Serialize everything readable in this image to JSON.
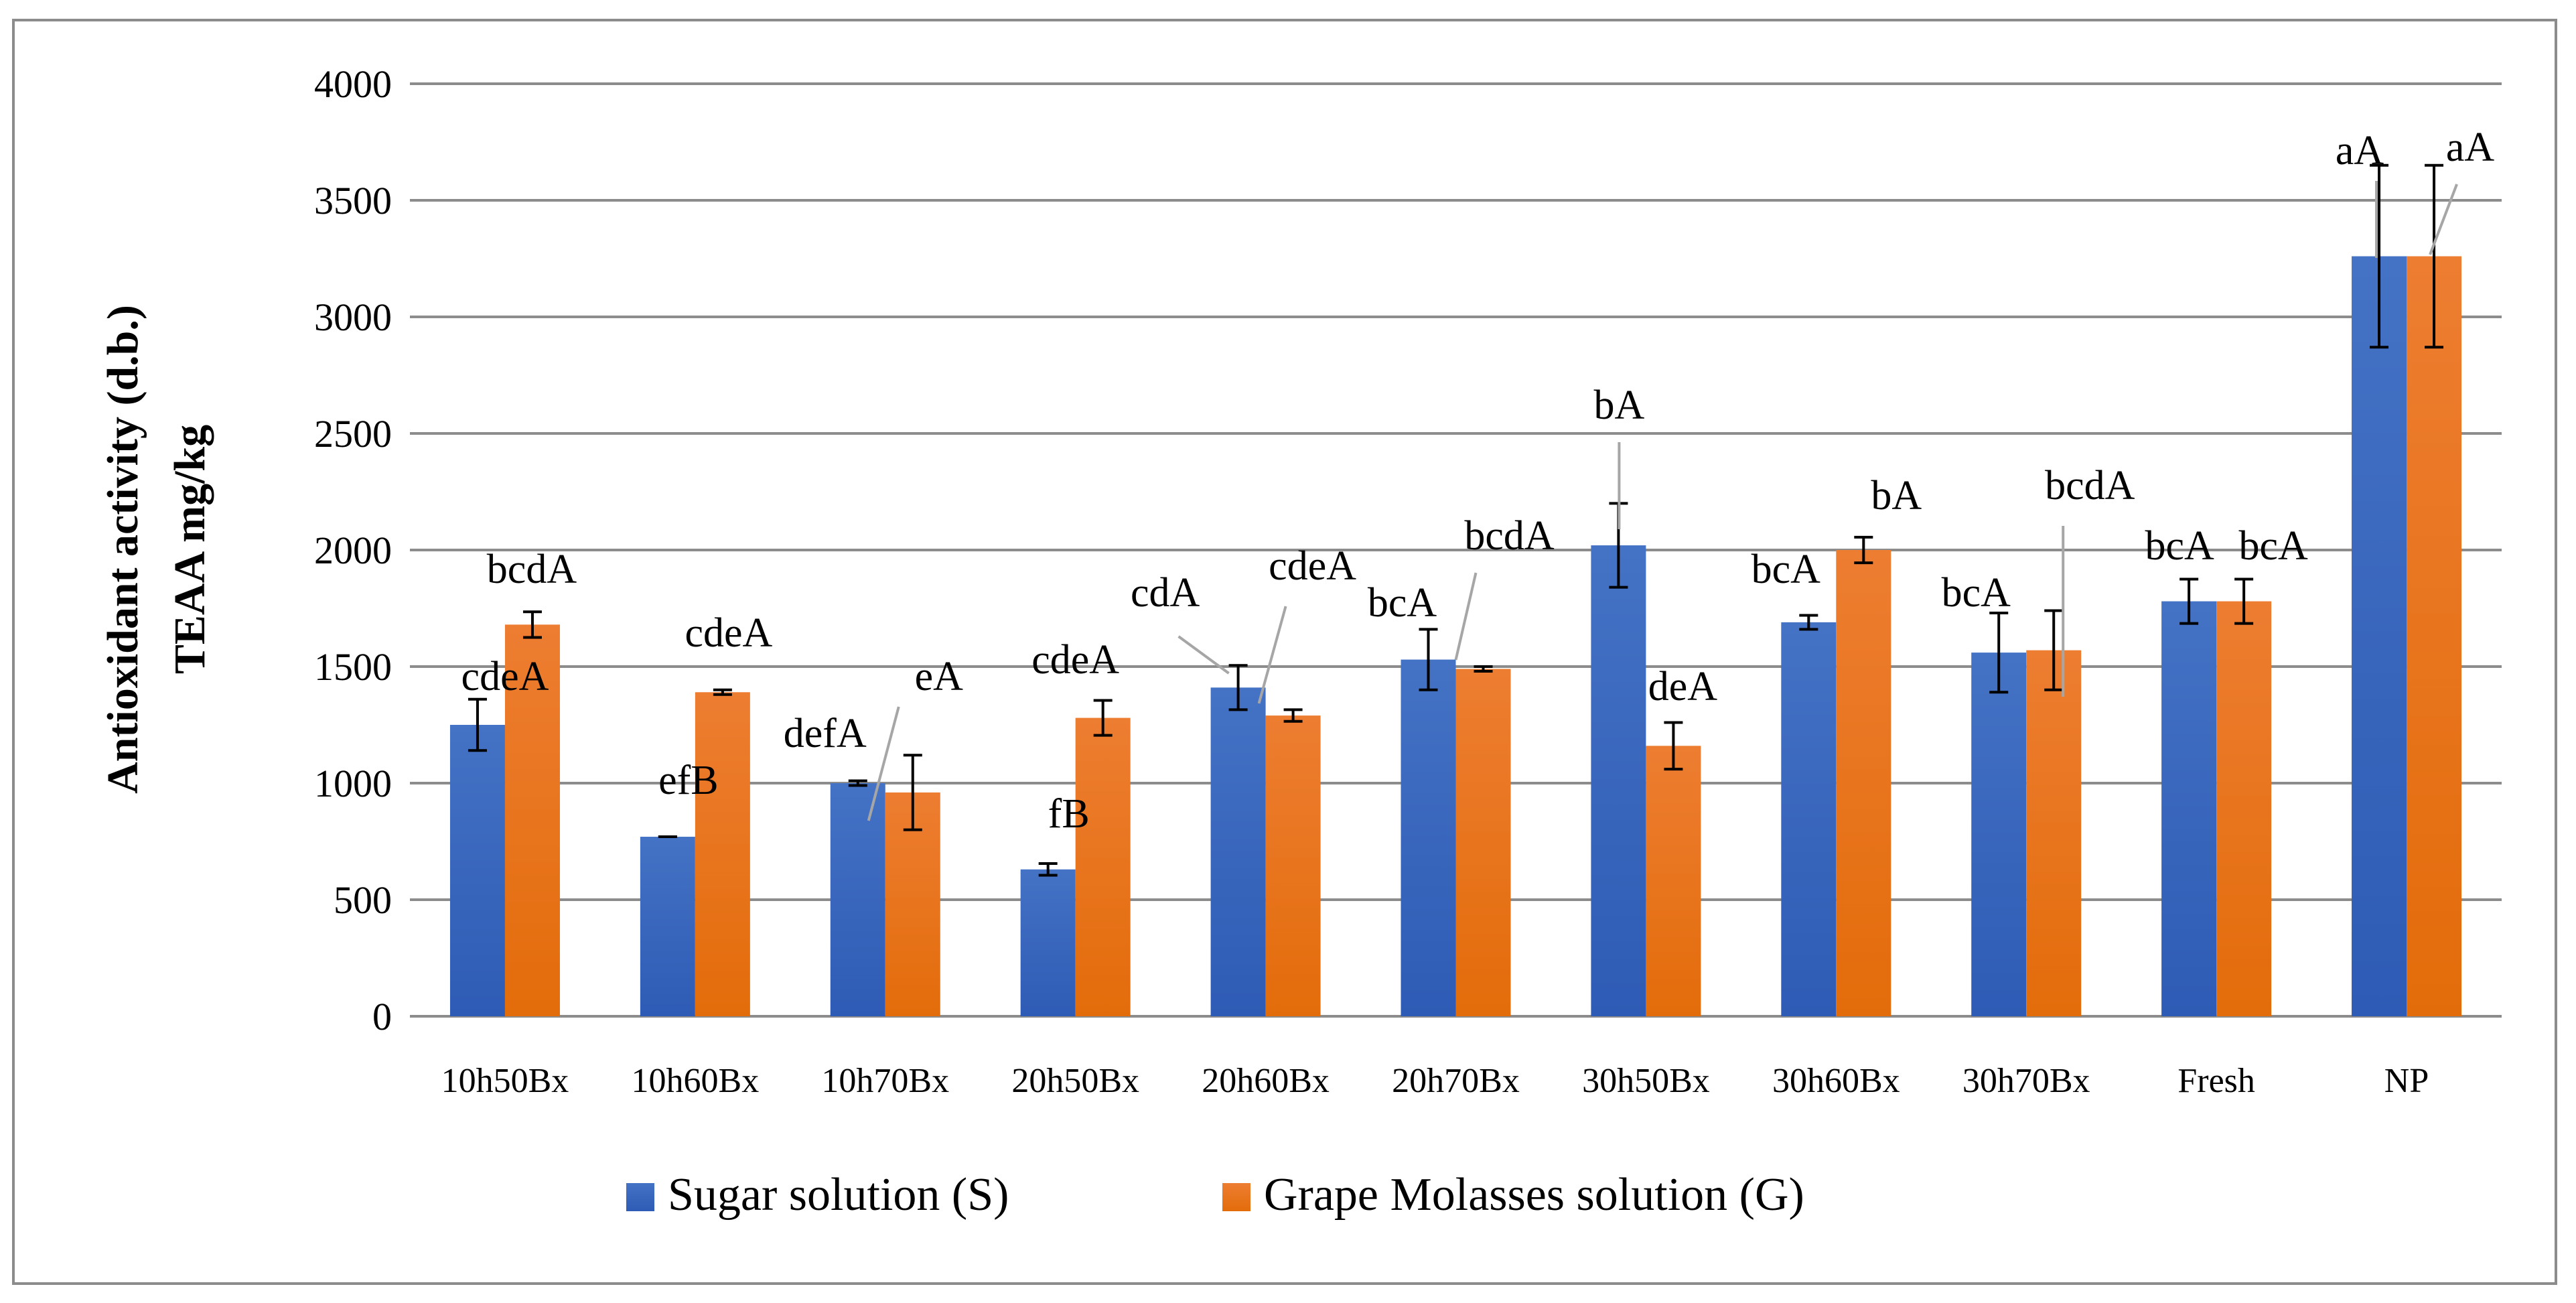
{
  "chart_data": {
    "type": "bar",
    "ylabel_lines": [
      "Antioxidant activity (d.b.)",
      "TEAA mg/kg"
    ],
    "ylim": [
      0,
      4000
    ],
    "yticks": [
      0,
      500,
      1000,
      1500,
      2000,
      2500,
      3000,
      3500,
      4000
    ],
    "grid": true,
    "legend_position": "bottom",
    "categories": [
      "10h50Bx",
      "10h60Bx",
      "10h70Bx",
      "20h50Bx",
      "20h60Bx",
      "20h70Bx",
      "30h50Bx",
      "30h60Bx",
      "30h70Bx",
      "Fresh",
      "NP"
    ],
    "series": [
      {
        "name": "Sugar solution (S)",
        "color": "#4472C4",
        "color_dark": "#2E5BB5",
        "values": [
          1250,
          770,
          1000,
          630,
          1410,
          1530,
          2020,
          1690,
          1560,
          1780,
          3260
        ],
        "errors": [
          110,
          0,
          10,
          25,
          95,
          130,
          180,
          30,
          170,
          95,
          390
        ],
        "labels": [
          "cdeA",
          "efB",
          "defA",
          "fB",
          "cdA",
          "bcA",
          "bA",
          "bcA",
          "bcA",
          "bcA",
          "aA"
        ]
      },
      {
        "name": "Grape Molasses solution (G)",
        "color": "#ED7D31",
        "color_dark": "#E36C0A",
        "values": [
          1680,
          1390,
          960,
          1280,
          1290,
          1490,
          1160,
          2000,
          1570,
          1780,
          3260
        ],
        "errors": [
          55,
          10,
          160,
          75,
          25,
          10,
          100,
          55,
          170,
          95,
          390
        ],
        "labels": [
          "bcdA",
          "cdeA",
          "eA",
          "cdeA",
          "cdeA",
          "bcdA",
          "deA",
          "bA",
          "bcdA",
          "bcA",
          "aA"
        ]
      }
    ]
  }
}
